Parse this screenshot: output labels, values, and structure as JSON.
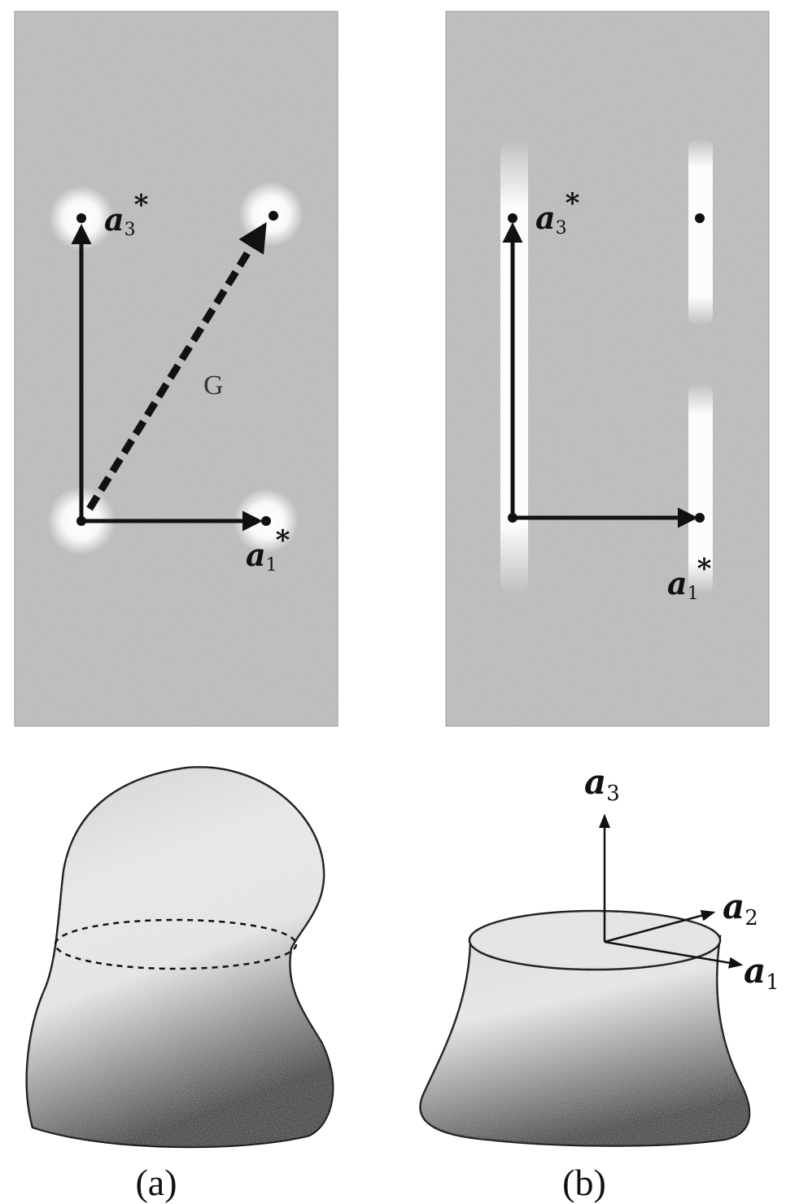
{
  "panel_a": {
    "top_label": {
      "base": "a",
      "sub": "3",
      "sup": "*"
    },
    "right_label": {
      "base": "a",
      "sub": "1",
      "sup": "*"
    },
    "vector_label": "G",
    "caption": "(a)"
  },
  "panel_b": {
    "top_label": {
      "base": "a",
      "sub": "3",
      "sup": "*"
    },
    "right_label": {
      "base": "a",
      "sub": "1",
      "sup": "*"
    },
    "axis_labels": [
      {
        "base": "a",
        "sub": "3"
      },
      {
        "base": "a",
        "sub": "2"
      },
      {
        "base": "a",
        "sub": "1"
      }
    ],
    "caption": "(b)"
  },
  "colors": {
    "ink": "#111111",
    "noise_light": "#cfcfcf",
    "noise_dark": "#8c8c8c"
  }
}
